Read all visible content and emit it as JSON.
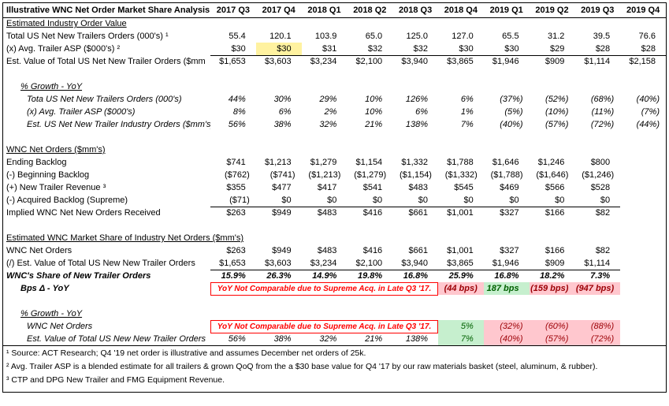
{
  "title": "Illustrative WNC Net Order Market Share Analysis",
  "columns": [
    "2017 Q3",
    "2017 Q4",
    "2018 Q1",
    "2018 Q2",
    "2018 Q3",
    "2018 Q4",
    "2019 Q1",
    "2019 Q2",
    "2019 Q3",
    "2019 Q4"
  ],
  "rows": [
    {
      "style": "section",
      "label": "Estimated Industry Order Value",
      "values": []
    },
    {
      "style": "data",
      "label": "Total US Net New Trailers Orders (000's) ¹",
      "values": [
        "55.4",
        "120.1",
        "103.9",
        "65.0",
        "125.0",
        "127.0",
        "65.5",
        "31.2",
        "39.5",
        "76.6"
      ]
    },
    {
      "style": "data",
      "label": "(x) Avg. Trailer ASP ($000's) ²",
      "underline": true,
      "values": [
        "$30",
        {
          "t": "$30",
          "cls": "hl"
        },
        "$31",
        "$32",
        "$32",
        "$30",
        "$30",
        "$29",
        "$28",
        "$28"
      ]
    },
    {
      "style": "data",
      "label": "Est. Value of Total US Net New Trailer Orders ($mm",
      "values": [
        "$1,653",
        "$3,603",
        "$3,234",
        "$2,100",
        "$3,940",
        "$3,865",
        "$1,946",
        "$909",
        "$1,114",
        "$2,158"
      ]
    },
    {
      "style": "blank",
      "label": "",
      "values": []
    },
    {
      "style": "isection",
      "label": "% Growth - YoY",
      "indent": 1,
      "values": []
    },
    {
      "style": "italic",
      "label": "Tota US Net New Trailers Orders (000's)",
      "indent": 2,
      "values": [
        "44%",
        "30%",
        "29%",
        "10%",
        "126%",
        "6%",
        "(37%)",
        "(52%)",
        "(68%)",
        "(40%)"
      ]
    },
    {
      "style": "italic",
      "label": "(x) Avg. Trailer ASP ($000's)",
      "indent": 2,
      "values": [
        "8%",
        "6%",
        "2%",
        "10%",
        "6%",
        "1%",
        "(5%)",
        "(10%)",
        "(11%)",
        "(7%)"
      ]
    },
    {
      "style": "italic",
      "label": "Est. US Net New Trailer Industry Orders ($mm's)",
      "indent": 2,
      "values": [
        "56%",
        "38%",
        "32%",
        "21%",
        "138%",
        "7%",
        "(40%)",
        "(57%)",
        "(72%)",
        "(44%)"
      ]
    },
    {
      "style": "blank",
      "label": "",
      "values": []
    },
    {
      "style": "section",
      "label": "WNC Net Orders ($mm's)",
      "values": []
    },
    {
      "style": "data",
      "label": "Ending Backlog",
      "values": [
        "$741",
        "$1,213",
        "$1,279",
        "$1,154",
        "$1,332",
        "$1,788",
        "$1,646",
        "$1,246",
        "$800",
        ""
      ]
    },
    {
      "style": "data",
      "label": "(-) Beginning Backlog",
      "values": [
        "($762)",
        "($741)",
        "($1,213)",
        "($1,279)",
        "($1,154)",
        "($1,332)",
        "($1,788)",
        "($1,646)",
        "($1,246)",
        ""
      ]
    },
    {
      "style": "data",
      "label": "(+) New Trailer Revenue ³",
      "values": [
        "$355",
        "$477",
        "$417",
        "$541",
        "$483",
        "$545",
        "$469",
        "$566",
        "$528",
        ""
      ]
    },
    {
      "style": "data",
      "label": "(-) Acquired Backlog (Supreme)",
      "underline": true,
      "values": [
        "($71)",
        "$0",
        "$0",
        "$0",
        "$0",
        "$0",
        "$0",
        "$0",
        "$0",
        ""
      ]
    },
    {
      "style": "data",
      "label": "Implied WNC Net New Orders Received",
      "values": [
        "$263",
        "$949",
        "$483",
        "$416",
        "$661",
        "$1,001",
        "$327",
        "$166",
        "$82",
        ""
      ]
    },
    {
      "style": "blank",
      "label": "",
      "values": []
    },
    {
      "style": "section",
      "label": "Estimated WNC Market Share of Industry Net Orders ($mm's)",
      "values": []
    },
    {
      "style": "data",
      "label": "WNC Net Orders",
      "values": [
        "$263",
        "$949",
        "$483",
        "$416",
        "$661",
        "$1,001",
        "$327",
        "$166",
        "$82",
        ""
      ]
    },
    {
      "style": "data",
      "label": "(/) Est. Value of Total US New New Trailer Orders",
      "underline": true,
      "values": [
        "$1,653",
        "$3,603",
        "$3,234",
        "$2,100",
        "$3,940",
        "$3,865",
        "$1,946",
        "$909",
        "$1,114",
        ""
      ]
    },
    {
      "style": "bolditalic",
      "label": "WNC's Share of New Trailer Orders",
      "values": [
        "15.9%",
        "26.3%",
        "14.9%",
        "19.8%",
        "16.8%",
        "25.9%",
        "16.8%",
        "18.2%",
        "7.3%",
        ""
      ]
    },
    {
      "style": "bolditalic",
      "label": "Bps Δ - YoY",
      "indent": 1,
      "values": [
        {
          "t": "YoY Not Comparable due to Supreme Acq. in Late Q3 '17.",
          "span": 5,
          "cls": "note"
        },
        {
          "t": "(44 bps)",
          "cls": "bad"
        },
        {
          "t": "187 bps",
          "cls": "good"
        },
        {
          "t": "(159 bps)",
          "cls": "bad"
        },
        {
          "t": "(947 bps)",
          "cls": "bad"
        },
        ""
      ]
    },
    {
      "style": "blank",
      "label": "",
      "values": []
    },
    {
      "style": "isection",
      "label": "% Growth - YoY",
      "indent": 1,
      "values": []
    },
    {
      "style": "italic",
      "label": "WNC Net Orders",
      "indent": 2,
      "values": [
        {
          "t": "YoY Not Comparable due to Supreme Acq. in Late Q3 '17.",
          "span": 5,
          "cls": "note"
        },
        {
          "t": "5%",
          "cls": "good"
        },
        {
          "t": "(32%)",
          "cls": "bad"
        },
        {
          "t": "(60%)",
          "cls": "bad"
        },
        {
          "t": "(88%)",
          "cls": "bad"
        },
        ""
      ]
    },
    {
      "style": "italic",
      "label": "Est. Value of Total US New New Trailer Orders",
      "indent": 2,
      "values": [
        "56%",
        "38%",
        "32%",
        "21%",
        "138%",
        {
          "t": "7%",
          "cls": "good"
        },
        {
          "t": "(40%)",
          "cls": "bad"
        },
        {
          "t": "(57%)",
          "cls": "bad"
        },
        {
          "t": "(72%)",
          "cls": "bad"
        },
        ""
      ]
    }
  ],
  "footnotes": [
    "¹ Source: ACT Research; Q4 '19 net order is illustrative and assumes December net orders of 25k.",
    "² Avg. Trailer ASP is a blended estimate for all trailers & grown QoQ from the a $30 base value for Q4 '17 by our raw materials basket (steel, aluminum, & rubber).",
    "³ CTP and DPG New Trailer and FMG Equipment Revenue."
  ],
  "colors": {
    "highlight_yellow": "#FFF2A0",
    "positive_bg": "#C6EFCE",
    "positive_text": "#006100",
    "negative_bg": "#FFC7CE",
    "negative_text": "#9C0006",
    "note_red": "#FF0000"
  }
}
